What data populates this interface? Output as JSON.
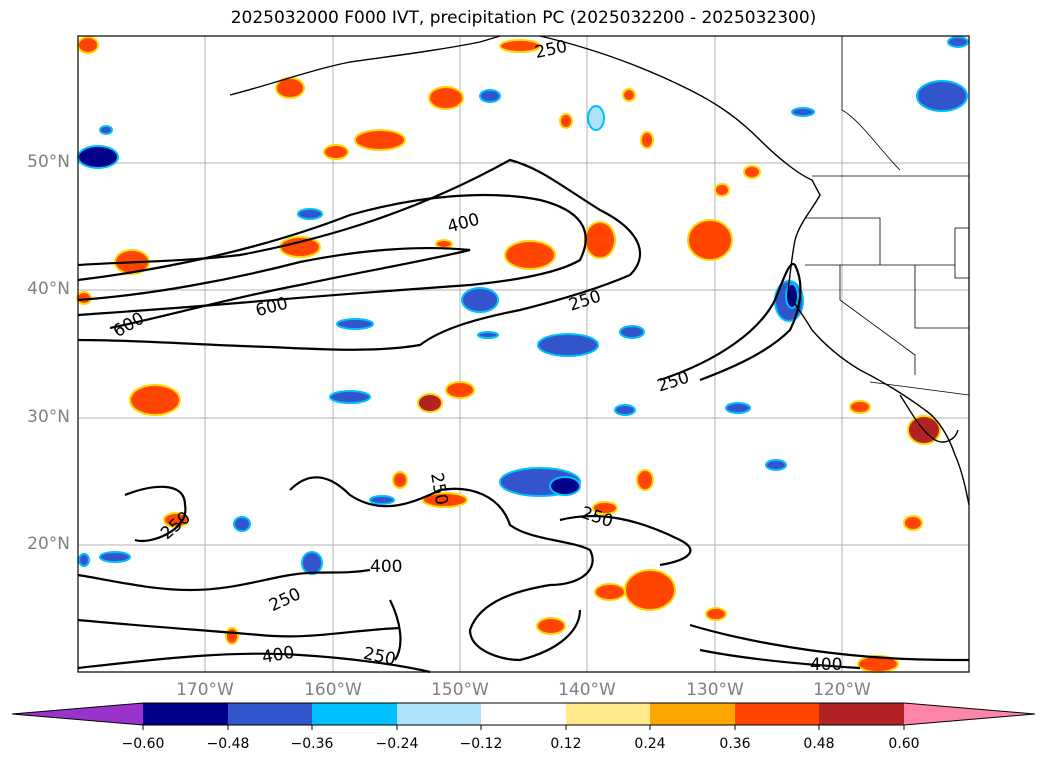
{
  "title": "2025032000 F000 IVT, precipitation PC (2025032200 - 2025032300)",
  "lat_labels": [
    "50°N",
    "40°N",
    "30°N",
    "20°N"
  ],
  "lon_labels": [
    "170°W",
    "160°W",
    "150°W",
    "140°W",
    "130°W",
    "120°W"
  ],
  "contour_labels": [
    "250",
    "250",
    "250",
    "250",
    "250",
    "250",
    "250",
    "250",
    "400",
    "400",
    "400",
    "400",
    "600",
    "600"
  ],
  "colorbar": {
    "ticks": [
      "−0.60",
      "−0.48",
      "−0.36",
      "−0.24",
      "−0.12",
      "0.12",
      "0.24",
      "0.36",
      "0.48",
      "0.60"
    ],
    "colors": [
      "#9933cc",
      "#00008b",
      "#3355cc",
      "#00bfff",
      "#aee2fa",
      "#ffffff",
      "#ffe98a",
      "#ffa500",
      "#ff4500",
      "#b22222",
      "#ff85a8"
    ]
  }
}
